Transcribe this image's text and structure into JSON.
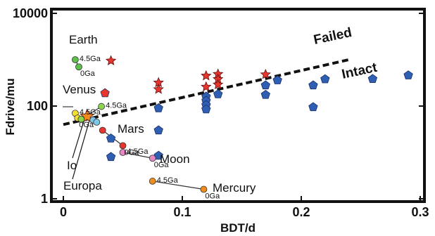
{
  "chart_data": {
    "type": "scatter",
    "xlabel": "BDT/d",
    "ylabel": "Fdrive/mu",
    "xlim": [
      0,
      0.3
    ],
    "ylim": [
      1,
      10000
    ],
    "yscale": "log",
    "x_ticks": [
      "0",
      "0.1",
      "0.2",
      "0.3"
    ],
    "x_tick_values": [
      0,
      0.1,
      0.2,
      0.3
    ],
    "y_ticks": [
      "1",
      "100",
      "10000"
    ],
    "y_tick_values": [
      1,
      100,
      10000
    ],
    "regions": {
      "above": "Failed",
      "below": "Intact"
    },
    "boundary_line": {
      "style": "dashed",
      "points": [
        [
          0,
          40
        ],
        [
          0.24,
          1000
        ]
      ]
    },
    "series": [
      {
        "marker": "star",
        "color": "#e8352e",
        "points": [
          [
            0.04,
            950
          ],
          [
            0.08,
            320
          ],
          [
            0.08,
            230
          ],
          [
            0.12,
            450
          ],
          [
            0.12,
            260
          ],
          [
            0.13,
            490
          ],
          [
            0.13,
            380
          ],
          [
            0.13,
            290
          ],
          [
            0.17,
            480
          ]
        ]
      },
      {
        "marker": "pentagon",
        "color": "#2f5fb3",
        "points": [
          [
            0.04,
            20
          ],
          [
            0.04,
            8
          ],
          [
            0.08,
            90
          ],
          [
            0.08,
            30
          ],
          [
            0.08,
            8.5
          ],
          [
            0.12,
            160
          ],
          [
            0.12,
            130
          ],
          [
            0.12,
            105
          ],
          [
            0.12,
            85
          ],
          [
            0.13,
            180
          ],
          [
            0.17,
            280
          ],
          [
            0.17,
            175
          ],
          [
            0.18,
            360
          ],
          [
            0.21,
            280
          ],
          [
            0.21,
            95
          ],
          [
            0.22,
            380
          ],
          [
            0.26,
            385
          ],
          [
            0.29,
            460
          ]
        ]
      },
      {
        "marker": "pentagon",
        "color": "#e8352e",
        "points": [
          [
            0.035,
            190
          ]
        ]
      },
      {
        "marker": "star",
        "color": "#f08c1e",
        "points": [
          [
            0.02,
            60
          ]
        ]
      }
    ],
    "planets": [
      {
        "name": "Earth",
        "label_pos": [
          0.01,
          2300
        ],
        "color": "#5cc04a",
        "old": {
          "label": "4.5Ga",
          "x": 0.01,
          "y": 1000
        },
        "now": {
          "label": "0Ga",
          "x": 0.013,
          "y": 700
        }
      },
      {
        "name": "Venus",
        "label_pos": [
          0.005,
          170
        ],
        "color": "#f2e033",
        "old": {
          "label": "4.5Ga",
          "x": 0.01,
          "y": 70
        },
        "now": {
          "label": "0Ga",
          "x": 0.012,
          "y": 55
        }
      },
      {
        "name": "Io",
        "color": "#8ad44e",
        "old": {
          "label": "4.5Ga",
          "x": 0.032,
          "y": 98
        },
        "now": {
          "label": "",
          "x": 0.015,
          "y": 52
        }
      },
      {
        "name": "Europa",
        "color": "#7ec8e8",
        "old": {
          "label": "",
          "x": 0.025,
          "y": 50
        },
        "now": {
          "label": "",
          "x": 0.028,
          "y": 45
        }
      },
      {
        "name": "Mars",
        "label_pos": [
          0.045,
          32
        ],
        "color": "#e8352e",
        "old": {
          "label": "",
          "x": 0.033,
          "y": 30
        },
        "now": {
          "label": "0Ga",
          "x": 0.05,
          "y": 14
        }
      },
      {
        "name": "Moon",
        "label_pos": [
          0.095,
          7.5
        ],
        "color": "#e887c2",
        "old": {
          "label": "4.5Ga",
          "x": 0.05,
          "y": 10
        },
        "now": {
          "label": "0Ga",
          "x": 0.075,
          "y": 7.5
        }
      },
      {
        "name": "Mercury",
        "label_pos": [
          0.125,
          1.6
        ],
        "color": "#f08c1e",
        "old": {
          "label": "4.5Ga",
          "x": 0.075,
          "y": 2.4
        },
        "now": {
          "label": "0Ga",
          "x": 0.118,
          "y": 1.6
        }
      }
    ]
  },
  "colors": {
    "frame": "#111111",
    "star": "#e8352e",
    "pentagon": "#2f5fb3"
  }
}
